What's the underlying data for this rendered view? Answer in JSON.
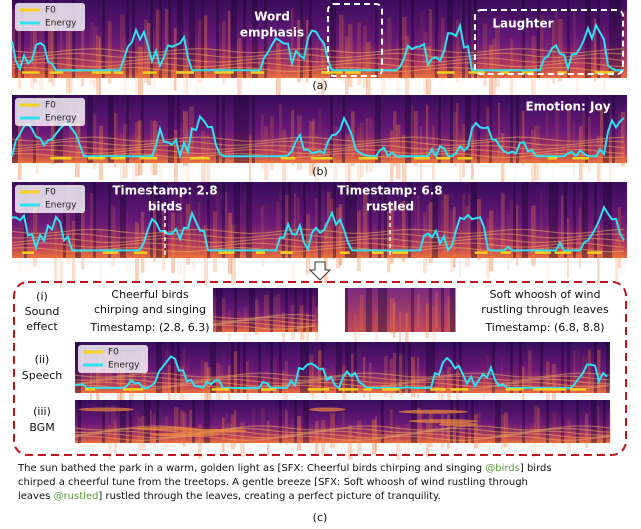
{
  "panel_a": {
    "legend": {
      "f0": "F0",
      "energy": "Energy"
    },
    "annotations": [
      [
        "Word",
        "emphasis"
      ],
      [
        "Laughter"
      ]
    ],
    "caption": "(a)"
  },
  "panel_b": {
    "legend": {
      "f0": "F0",
      "energy": "Energy"
    },
    "annotation": "Emotion: Joy",
    "caption": "(b)"
  },
  "panel_c_top": {
    "legend": {
      "f0": "F0",
      "energy": "Energy"
    },
    "markers": [
      {
        "timestamp": "Timestamp: 2.8",
        "word": "birds"
      },
      {
        "timestamp": "Timestamp: 6.8",
        "word": "rustled"
      }
    ]
  },
  "panel_c": {
    "sound_effect": {
      "label": [
        "(i)",
        "Sound",
        "effect"
      ],
      "clips": [
        {
          "description": [
            "Cheerful birds",
            "chirping and singing"
          ],
          "timestamp": "Timestamp: (2.8, 6.3)"
        },
        {
          "description": [
            "Soft whoosh of wind",
            "rustling through leaves"
          ],
          "timestamp": "Timestamp: (6.8, 8.8)"
        }
      ]
    },
    "speech": {
      "label": [
        "(ii)",
        "Speech"
      ],
      "legend": {
        "f0": "F0",
        "energy": "Energy"
      }
    },
    "bgm": {
      "label": [
        "(iii)",
        "BGM"
      ]
    },
    "transcript": [
      [
        {
          "text": "The sun bathed the park in a warm, golden light as [SFX: Cheerful birds chirping and singing "
        },
        {
          "tag": "@birds"
        },
        {
          "text": "] birds"
        }
      ],
      [
        {
          "text": "chirped a cheerful tune from the treetops. A gentle breeze [SFX: Soft whoosh of wind rustling through"
        }
      ],
      [
        {
          "text": "leaves "
        },
        {
          "tag": "@rustled"
        },
        {
          "text": "] rustled through the leaves, creating a perfect picture of tranquility."
        }
      ]
    ],
    "caption": "(c)"
  }
}
